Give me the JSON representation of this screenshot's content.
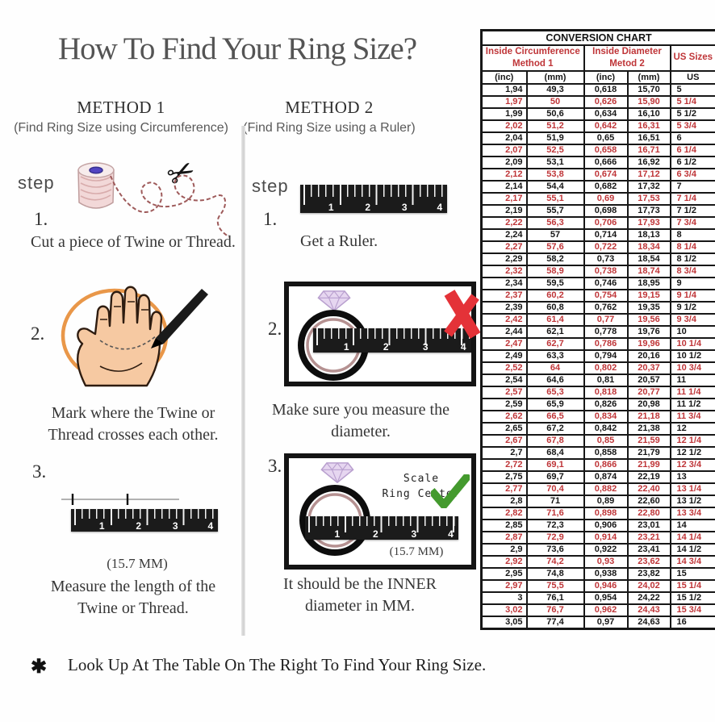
{
  "title": "How To Find Your Ring Size?",
  "methods": {
    "method1": {
      "heading": "METHOD 1",
      "subheading": "(Find Ring Size using Circumference)",
      "step_label": "step",
      "step1_num": "1.",
      "step1_caption": "Cut a piece of Twine or Thread.",
      "step2_num": "2.",
      "step2_caption": "Mark where the Twine or Thread crosses each other.",
      "step3_num": "3.",
      "step3_note": "(15.7 MM)",
      "step3_caption": "Measure the length of the Twine or Thread."
    },
    "method2": {
      "heading": "METHOD 2",
      "subheading": "(Find Ring Size using a Ruler)",
      "step_label": "step",
      "step1_num": "1.",
      "step1_caption": "Get a Ruler.",
      "step2_num": "2.",
      "step2_caption": "Make sure you measure the diameter.",
      "step3_num": "3.",
      "step3_scale_line1": "Scale",
      "step3_scale_line2": "Ring Center",
      "step3_note": "(15.7 MM)",
      "step3_caption": "It should be the INNER diameter in MM."
    }
  },
  "ruler": {
    "numbers": [
      "1",
      "2",
      "3",
      "4"
    ]
  },
  "footer": {
    "bullet": "✱",
    "text": "Look Up At The Table On The Right To Find Your Ring Size."
  },
  "colors": {
    "accent_red": "#bf3538",
    "check_green": "#449a2e",
    "x_red": "#e43238"
  },
  "table": {
    "title": "CONVERSION CHART",
    "group_headers": [
      {
        "line1": "Inside Circumference",
        "line2": "Method 1"
      },
      {
        "line1": "Inside Diameter",
        "line2": "Metod 2"
      },
      {
        "line1": "US Sizes",
        "line2": ""
      }
    ],
    "unit_headers": [
      "(inc)",
      "(mm)",
      "(inc)",
      "(mm)",
      "US"
    ],
    "rows": [
      [
        "1,94",
        "49,3",
        "0,618",
        "15,70",
        "5"
      ],
      [
        "1,97",
        "50",
        "0,626",
        "15,90",
        "5 1/4"
      ],
      [
        "1,99",
        "50,6",
        "0,634",
        "16,10",
        "5 1/2"
      ],
      [
        "2,02",
        "51,2",
        "0,642",
        "16,31",
        "5 3/4"
      ],
      [
        "2,04",
        "51,9",
        "0,65",
        "16,51",
        "6"
      ],
      [
        "2,07",
        "52,5",
        "0,658",
        "16,71",
        "6 1/4"
      ],
      [
        "2,09",
        "53,1",
        "0,666",
        "16,92",
        "6 1/2"
      ],
      [
        "2,12",
        "53,8",
        "0,674",
        "17,12",
        "6 3/4"
      ],
      [
        "2,14",
        "54,4",
        "0,682",
        "17,32",
        "7"
      ],
      [
        "2,17",
        "55,1",
        "0,69",
        "17,53",
        "7 1/4"
      ],
      [
        "2,19",
        "55,7",
        "0,698",
        "17,73",
        "7 1/2"
      ],
      [
        "2,22",
        "56,3",
        "0,706",
        "17,93",
        "7 3/4"
      ],
      [
        "2,24",
        "57",
        "0,714",
        "18,13",
        "8"
      ],
      [
        "2,27",
        "57,6",
        "0,722",
        "18,34",
        "8 1/4"
      ],
      [
        "2,29",
        "58,2",
        "0,73",
        "18,54",
        "8 1/2"
      ],
      [
        "2,32",
        "58,9",
        "0,738",
        "18,74",
        "8 3/4"
      ],
      [
        "2,34",
        "59,5",
        "0,746",
        "18,95",
        "9"
      ],
      [
        "2,37",
        "60,2",
        "0,754",
        "19,15",
        "9 1/4"
      ],
      [
        "2,39",
        "60,8",
        "0,762",
        "19,35",
        "9 1/2"
      ],
      [
        "2,42",
        "61,4",
        "0,77",
        "19,56",
        "9 3/4"
      ],
      [
        "2,44",
        "62,1",
        "0,778",
        "19,76",
        "10"
      ],
      [
        "2,47",
        "62,7",
        "0,786",
        "19,96",
        "10 1/4"
      ],
      [
        "2,49",
        "63,3",
        "0,794",
        "20,16",
        "10 1/2"
      ],
      [
        "2,52",
        "64",
        "0,802",
        "20,37",
        "10 3/4"
      ],
      [
        "2,54",
        "64,6",
        "0,81",
        "20,57",
        "11"
      ],
      [
        "2,57",
        "65,3",
        "0,818",
        "20,77",
        "11 1/4"
      ],
      [
        "2,59",
        "65,9",
        "0,826",
        "20,98",
        "11 1/2"
      ],
      [
        "2,62",
        "66,5",
        "0,834",
        "21,18",
        "11 3/4"
      ],
      [
        "2,65",
        "67,2",
        "0,842",
        "21,38",
        "12"
      ],
      [
        "2,67",
        "67,8",
        "0,85",
        "21,59",
        "12 1/4"
      ],
      [
        "2,7",
        "68,4",
        "0,858",
        "21,79",
        "12 1/2"
      ],
      [
        "2,72",
        "69,1",
        "0,866",
        "21,99",
        "12 3/4"
      ],
      [
        "2,75",
        "69,7",
        "0,874",
        "22,19",
        "13"
      ],
      [
        "2,77",
        "70,4",
        "0,882",
        "22,40",
        "13 1/4"
      ],
      [
        "2,8",
        "71",
        "0,89",
        "22,60",
        "13 1/2"
      ],
      [
        "2,82",
        "71,6",
        "0,898",
        "22,80",
        "13 3/4"
      ],
      [
        "2,85",
        "72,3",
        "0,906",
        "23,01",
        "14"
      ],
      [
        "2,87",
        "72,9",
        "0,914",
        "23,21",
        "14 1/4"
      ],
      [
        "2,9",
        "73,6",
        "0,922",
        "23,41",
        "14 1/2"
      ],
      [
        "2,92",
        "74,2",
        "0,93",
        "23,62",
        "14 3/4"
      ],
      [
        "2,95",
        "74,8",
        "0,938",
        "23,82",
        "15"
      ],
      [
        "2,97",
        "75,5",
        "0,946",
        "24,02",
        "15 1/4"
      ],
      [
        "3",
        "76,1",
        "0,954",
        "24,22",
        "15 1/2"
      ],
      [
        "3,02",
        "76,7",
        "0,962",
        "24,43",
        "15 3/4"
      ],
      [
        "3,05",
        "77,4",
        "0,97",
        "24,63",
        "16"
      ]
    ]
  }
}
